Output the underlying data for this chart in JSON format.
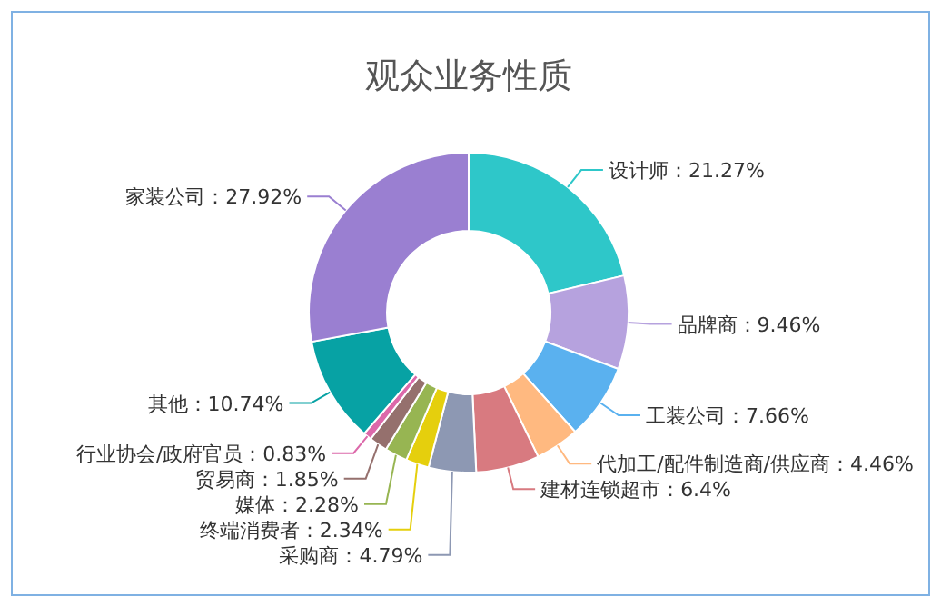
{
  "chart_data": {
    "type": "donut",
    "title": "观众业务性质",
    "categories": [
      "设计师",
      "品牌商",
      "工装公司",
      "代加工/配件制造商/供应商",
      "建材连锁超市",
      "采购商",
      "终端消费者",
      "媒体",
      "贸易商",
      "行业协会/政府官员",
      "其他",
      "家装公司"
    ],
    "values": [
      21.27,
      9.46,
      7.66,
      4.46,
      6.4,
      4.79,
      2.34,
      2.28,
      1.85,
      0.83,
      10.74,
      27.92
    ],
    "value_labels": [
      "：21.27%",
      "：9.46%",
      "：7.66%",
      "：4.46%",
      "：6.4%",
      "：4.79%",
      "：2.34%",
      "：2.28%",
      "：1.85%",
      "：0.83%",
      "：10.74%",
      "：27.92%"
    ],
    "colors": [
      "#2ec7c9",
      "#b6a2de",
      "#5ab1ef",
      "#ffb980",
      "#d87a80",
      "#8d98b3",
      "#e5cf0d",
      "#97b552",
      "#95706d",
      "#dc69aa",
      "#07a2a4",
      "#9a7fd1"
    ]
  }
}
